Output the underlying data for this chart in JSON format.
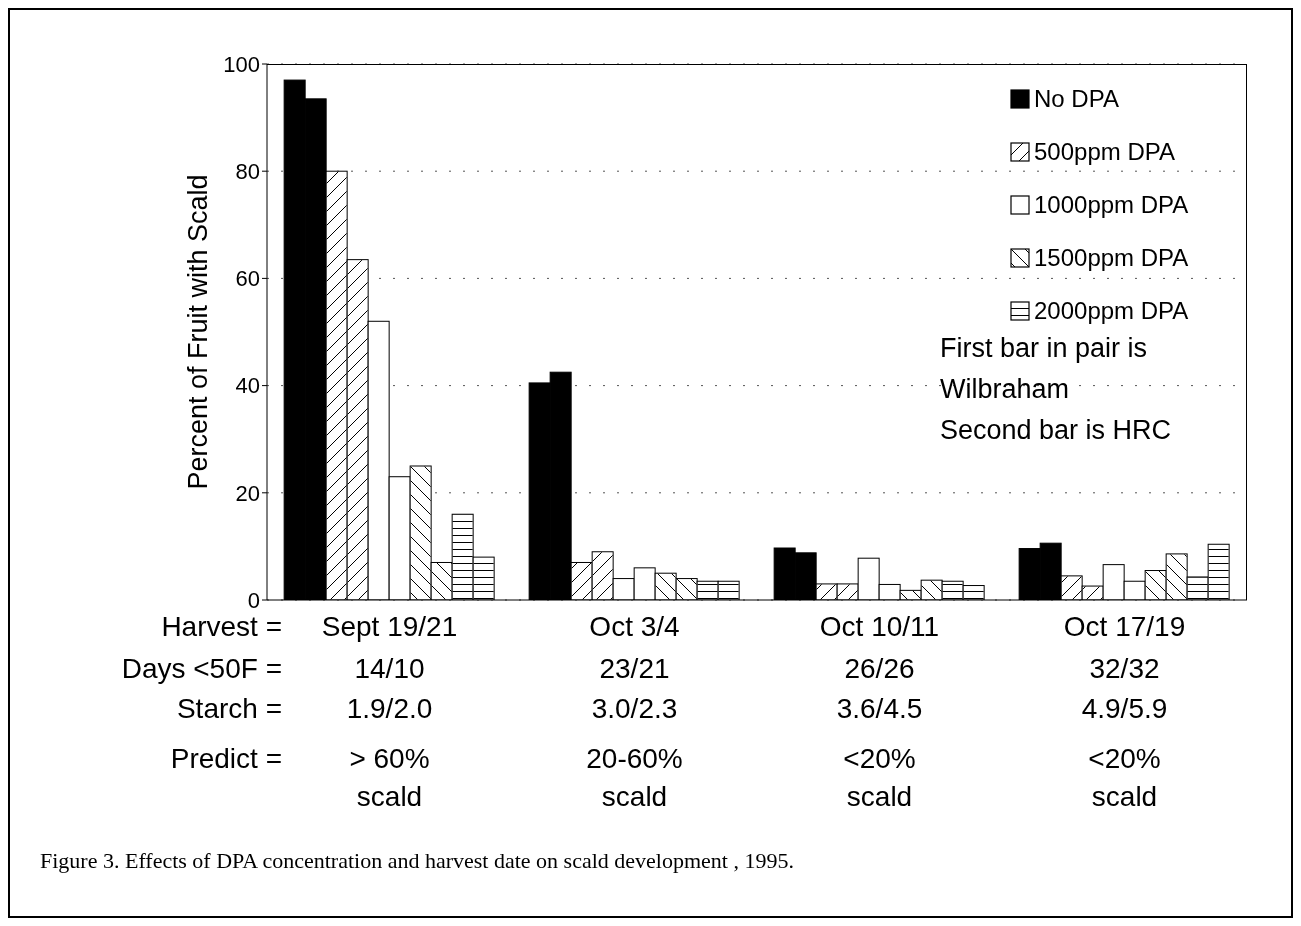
{
  "chart_data": {
    "type": "bar",
    "title": "Figure 3.  Effects of DPA concentration and harvest date on scald development , 1995.",
    "ylabel": "Percent of Fruit with Scald",
    "categories": [
      "Sept 19/21\n14/10\n1.9/2.0\n> 60%\nscald",
      "Oct 3/4\n23/21\n3.0/2.3\n20-60%\nscald",
      "Oct 10/11\n26/26\n3.6/4.5\n<20%\nscald",
      "Oct 17/19\n32/32\n4.9/5.9\n<20%\nscald"
    ],
    "series": [
      {
        "name": "No DPA",
        "color": "#000000",
        "values": [
          97,
          40.5,
          9.7,
          9.6
        ]
      },
      {
        "color": "#000000",
        "values": [
          93.5,
          42.5,
          8.8,
          10.6
        ]
      },
      {
        "name": "500ppm DPA",
        "color": "#ffffff",
        "values": [
          80,
          7,
          3,
          4.5
        ]
      },
      {
        "color": "#ffffff",
        "values": [
          63.5,
          9,
          3,
          2.6
        ]
      },
      {
        "name": "1000ppm DPA",
        "color": "#ffffff",
        "values": [
          52,
          4,
          7.8,
          6.6
        ]
      },
      {
        "color": "#ffffff",
        "values": [
          23,
          6,
          2.9,
          3.5
        ]
      },
      {
        "name": "1500ppm DPA",
        "color": "#ffffff",
        "values": [
          25,
          5,
          1.8,
          5.5
        ]
      },
      {
        "color": "#ffffff",
        "values": [
          7,
          4,
          3.7,
          8.6
        ]
      },
      {
        "name": "2000ppm DPA",
        "color": "#ffffff",
        "values": [
          16,
          3.5,
          3.5,
          4.3
        ]
      },
      {
        "color": "#ffffff",
        "values": [
          8,
          3.5,
          2.7,
          10.4
        ]
      }
    ],
    "annotations": [
      "Harvest =",
      "Days <50F =",
      "Starch =",
      "Predict =",
      "First bar in pair is",
      "Wilbraham",
      "Second bar is HRC"
    ],
    "ylim": [
      0,
      100
    ],
    "yticks": [
      0,
      20,
      40,
      60,
      80,
      100
    ],
    "grid": "y",
    "legend": "top right"
  }
}
